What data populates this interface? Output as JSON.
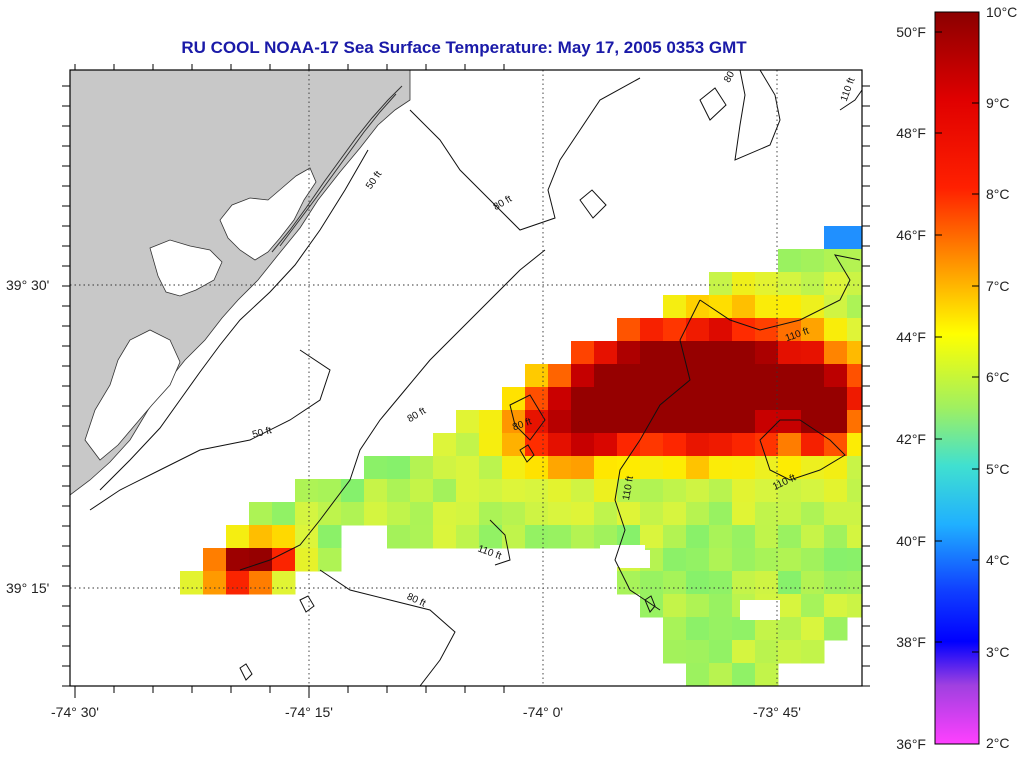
{
  "title": "RU COOL  NOAA-17  Sea Surface Temperature:  May 17, 2005 0353 GMT",
  "map": {
    "lon_labels": [
      "-74° 30'",
      "-74° 15'",
      "-74° 0'",
      "-73° 45'"
    ],
    "lat_labels": [
      "39° 30'",
      "39° 15'"
    ],
    "contour_labels": [
      "80 ft",
      "50 ft",
      "80 ft",
      "80 ft",
      "50 ft",
      "80 ft",
      "80 ft",
      "110 ft",
      "110 ft",
      "110 ft",
      "110 ft",
      "110 ft"
    ],
    "land_color": "#c8c8c8",
    "water_color": "#ffffff"
  },
  "colorbar": {
    "fahrenheit_labels": [
      "50°F",
      "48°F",
      "46°F",
      "44°F",
      "42°F",
      "40°F",
      "38°F",
      "36°F"
    ],
    "celsius_labels": [
      "10°C",
      "9°C",
      "8°C",
      "7°C",
      "6°C",
      "5°C",
      "4°C",
      "3°C",
      "2°C"
    ],
    "colors": [
      "#8b0000",
      "#ff0000",
      "#ff8c00",
      "#ffff00",
      "#7cfc7c",
      "#40e0d0",
      "#1e90ff",
      "#0000ff",
      "#ff40ff"
    ]
  }
}
